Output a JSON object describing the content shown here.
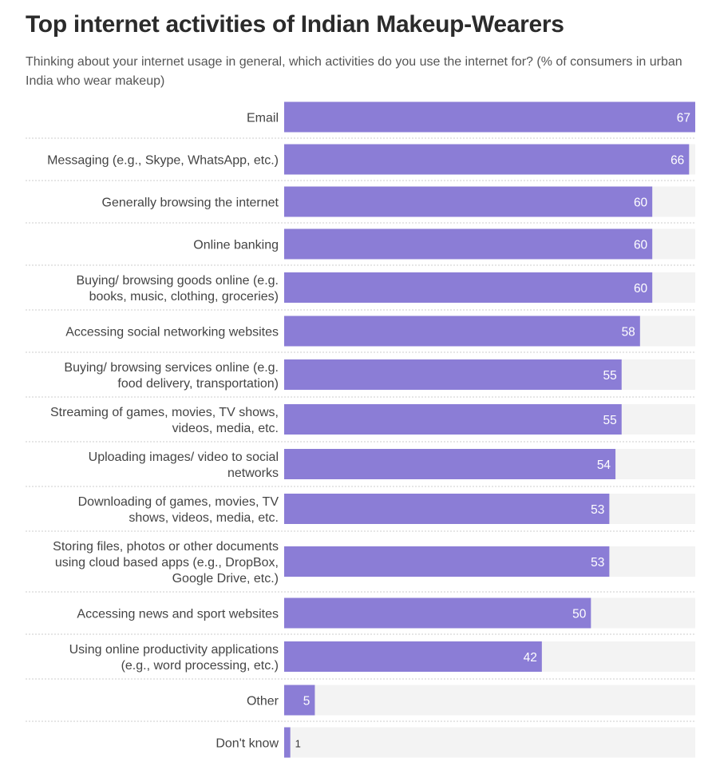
{
  "chart_data": {
    "type": "bar",
    "orientation": "horizontal",
    "title": "Top internet activities of Indian Makeup-Wearers",
    "subtitle": "Thinking about your internet usage in general, which activities do you use the internet for? (% of consumers in urban India who wear makeup)",
    "xlim": [
      0,
      67
    ],
    "xlabel": "",
    "ylabel": "",
    "grid": false,
    "colors": {
      "bar": "#8b7dd6",
      "track": "#f3f3f3",
      "divider": "#cccccc"
    },
    "categories": [
      [
        "Email"
      ],
      [
        "Messaging (e.g., Skype, WhatsApp, etc.)"
      ],
      [
        "Generally browsing the internet"
      ],
      [
        "Online banking"
      ],
      [
        "Buying/ browsing goods online (e.g.",
        "books, music, clothing, groceries)"
      ],
      [
        "Accessing social networking websites"
      ],
      [
        "Buying/ browsing services online (e.g.",
        "food delivery, transportation)"
      ],
      [
        "Streaming of games, movies, TV shows,",
        "videos, media, etc."
      ],
      [
        "Uploading images/ video to social",
        "networks"
      ],
      [
        "Downloading of games, movies, TV",
        "shows, videos, media, etc."
      ],
      [
        "Storing files, photos or other documents",
        "using cloud based apps (e.g., DropBox,",
        "Google Drive, etc.)"
      ],
      [
        "Accessing news and sport websites"
      ],
      [
        "Using online productivity applications",
        "(e.g., word processing, etc.)"
      ],
      [
        "Other"
      ],
      [
        "Don't know"
      ]
    ],
    "values": [
      67,
      66,
      60,
      60,
      60,
      58,
      55,
      55,
      54,
      53,
      53,
      50,
      42,
      5,
      1
    ]
  }
}
